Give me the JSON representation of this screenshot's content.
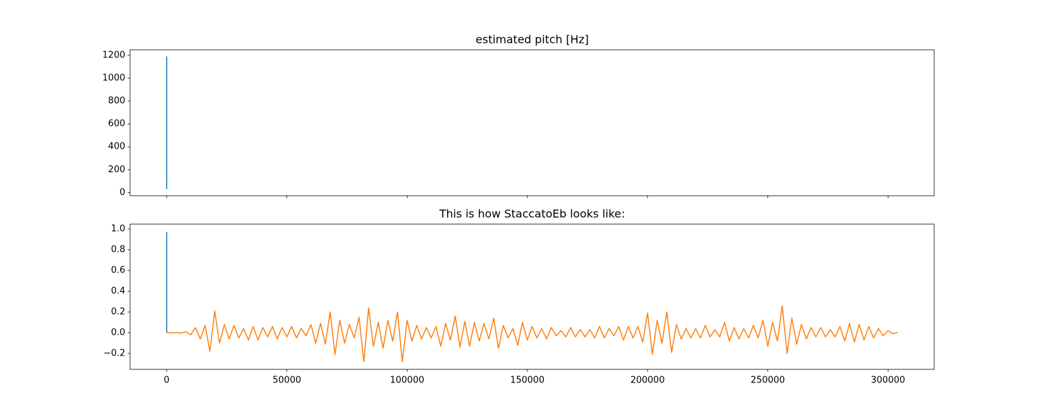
{
  "chart_data": [
    {
      "type": "line",
      "title": "estimated pitch [Hz]",
      "xlim": [
        -15200,
        319200
      ],
      "xticks": [
        0,
        50000,
        100000,
        150000,
        200000,
        250000,
        300000
      ],
      "show_xtick_labels": false,
      "ylim": [
        -28,
        1248
      ],
      "yticks": [
        0,
        200,
        400,
        600,
        800,
        1000,
        1200
      ],
      "series": [
        {
          "color": "#1f77b4",
          "x": [
            0,
            1
          ],
          "values": [
            1190,
            30
          ]
        }
      ]
    },
    {
      "type": "line",
      "title": "This is how StaccatoEb looks like:",
      "xlim": [
        -15200,
        319200
      ],
      "xticks": [
        0,
        50000,
        100000,
        150000,
        200000,
        250000,
        300000
      ],
      "show_xtick_labels": true,
      "ylim": [
        -0.353,
        1.047
      ],
      "yticks": [
        {
          "value": -0.2,
          "label": "−0.2"
        },
        {
          "value": 0,
          "label": "0.0"
        },
        0.2,
        0.4,
        0.6,
        0.8,
        {
          "value": 1,
          "label": "1.0"
        }
      ],
      "series": [
        {
          "color": "#1f77b4",
          "x": [
            0,
            1
          ],
          "values": [
            0.97,
            0
          ]
        },
        {
          "color": "#ff7f0e",
          "x": [
            0,
            2000,
            4000,
            6000,
            8000,
            10000,
            12000,
            14000,
            16000,
            18000,
            20000,
            22000,
            24000,
            26000,
            28000,
            30000,
            32000,
            34000,
            36000,
            38000,
            40000,
            42000,
            44000,
            46000,
            48000,
            50000,
            52000,
            54000,
            56000,
            58000,
            60000,
            62000,
            64000,
            66000,
            68000,
            70000,
            72000,
            74000,
            76000,
            78000,
            80000,
            82000,
            84000,
            86000,
            88000,
            90000,
            92000,
            94000,
            96000,
            98000,
            100000,
            102000,
            104000,
            106000,
            108000,
            110000,
            112000,
            114000,
            116000,
            118000,
            120000,
            122000,
            124000,
            126000,
            128000,
            130000,
            132000,
            134000,
            136000,
            138000,
            140000,
            142000,
            144000,
            146000,
            148000,
            150000,
            152000,
            154000,
            156000,
            158000,
            160000,
            162000,
            164000,
            166000,
            168000,
            170000,
            172000,
            174000,
            176000,
            178000,
            180000,
            182000,
            184000,
            186000,
            188000,
            190000,
            192000,
            194000,
            196000,
            198000,
            200000,
            202000,
            204000,
            206000,
            208000,
            210000,
            212000,
            214000,
            216000,
            218000,
            220000,
            222000,
            224000,
            226000,
            228000,
            230000,
            232000,
            234000,
            236000,
            238000,
            240000,
            242000,
            244000,
            246000,
            248000,
            250000,
            252000,
            254000,
            256000,
            258000,
            260000,
            262000,
            264000,
            266000,
            268000,
            270000,
            272000,
            274000,
            276000,
            278000,
            280000,
            282000,
            284000,
            286000,
            288000,
            290000,
            292000,
            294000,
            296000,
            298000,
            300000,
            302000,
            304000
          ],
          "values": [
            0.003,
            -0.003,
            0.003,
            -0.005,
            0.01,
            -0.02,
            0.05,
            -0.06,
            0.07,
            -0.18,
            0.21,
            -0.1,
            0.08,
            -0.06,
            0.07,
            -0.05,
            0.04,
            -0.07,
            0.06,
            -0.07,
            0.05,
            -0.04,
            0.06,
            -0.06,
            0.05,
            -0.04,
            0.06,
            -0.05,
            0.04,
            -0.03,
            0.08,
            -0.1,
            0.09,
            -0.11,
            0.2,
            -0.21,
            0.12,
            -0.1,
            0.08,
            -0.05,
            0.15,
            -0.28,
            0.24,
            -0.13,
            0.1,
            -0.15,
            0.12,
            -0.08,
            0.2,
            -0.28,
            0.12,
            -0.08,
            0.07,
            -0.06,
            0.05,
            -0.05,
            0.06,
            -0.13,
            0.09,
            -0.07,
            0.16,
            -0.14,
            0.11,
            -0.13,
            0.1,
            -0.08,
            0.09,
            -0.06,
            0.14,
            -0.15,
            0.07,
            -0.05,
            0.04,
            -0.12,
            0.1,
            -0.07,
            0.06,
            -0.05,
            0.04,
            -0.06,
            0.05,
            -0.03,
            0.02,
            -0.04,
            0.05,
            -0.04,
            0.03,
            -0.04,
            0.03,
            -0.05,
            0.06,
            -0.05,
            0.04,
            -0.03,
            0.06,
            -0.07,
            0.06,
            -0.05,
            0.06,
            -0.09,
            0.19,
            -0.21,
            0.12,
            -0.1,
            0.2,
            -0.19,
            0.08,
            -0.06,
            0.04,
            -0.05,
            0.04,
            -0.05,
            0.07,
            -0.04,
            0.03,
            -0.04,
            0.1,
            -0.08,
            0.05,
            -0.06,
            0.04,
            -0.05,
            0.07,
            -0.05,
            0.12,
            -0.13,
            0.1,
            -0.08,
            0.26,
            -0.2,
            0.14,
            -0.11,
            0.08,
            -0.06,
            0.05,
            -0.04,
            0.05,
            -0.04,
            0.03,
            -0.04,
            0.06,
            -0.08,
            0.09,
            -0.09,
            0.08,
            -0.07,
            0.06,
            -0.05,
            0.04,
            -0.03,
            0.02,
            -0.01,
            0.003
          ]
        }
      ]
    }
  ]
}
